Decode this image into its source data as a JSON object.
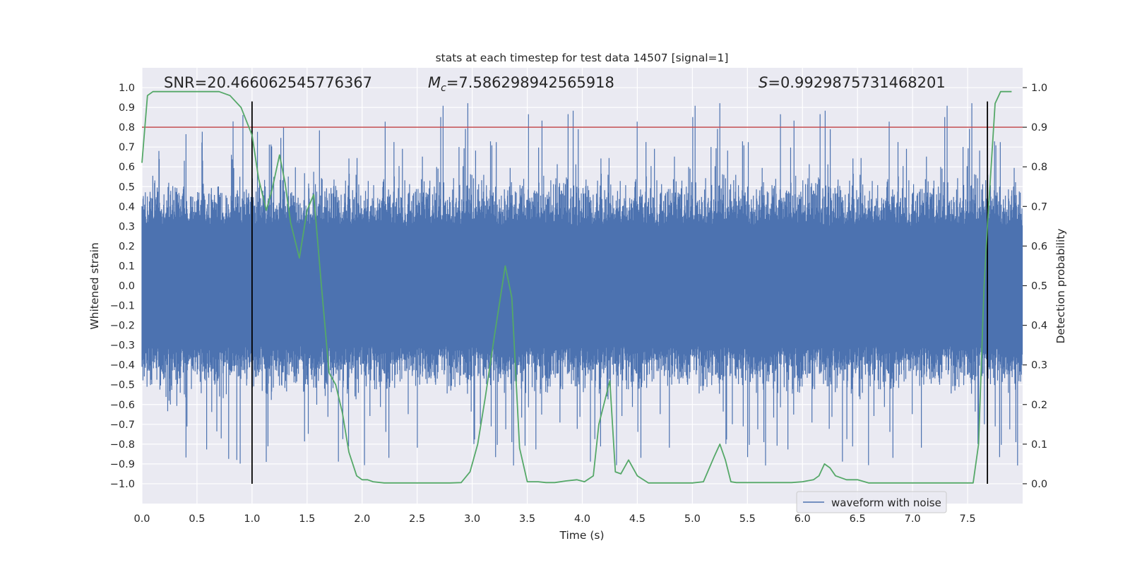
{
  "chart_data": {
    "type": "line",
    "title": "stats at each timestep for test data 14507 [signal=1]",
    "xlabel": "Time (s)",
    "ylabel": "Whitened strain",
    "ylabel_right": "Detection probability",
    "xlim": [
      0.0,
      8.0
    ],
    "ylim": [
      -1.1,
      1.1
    ],
    "ylim_right": [
      -0.05,
      1.05
    ],
    "x_ticks": [
      0.0,
      0.5,
      1.0,
      1.5,
      2.0,
      2.5,
      3.0,
      3.5,
      4.0,
      4.5,
      5.0,
      5.5,
      6.0,
      6.5,
      7.0,
      7.5
    ],
    "x_tick_labels": [
      "0.0",
      "0.5",
      "1.0",
      "1.5",
      "2.0",
      "2.5",
      "3.0",
      "3.5",
      "4.0",
      "4.5",
      "5.0",
      "5.5",
      "6.0",
      "6.5",
      "7.0",
      "7.5"
    ],
    "y_ticks": [
      1.0,
      0.9,
      0.8,
      0.7,
      0.6,
      0.5,
      0.4,
      0.3,
      0.2,
      0.1,
      0.0,
      -0.1,
      -0.2,
      -0.3,
      -0.4,
      -0.5,
      -0.6,
      -0.7,
      -0.8,
      -0.9,
      -1.0
    ],
    "y_tick_labels": [
      "1.0",
      "0.9",
      "0.8",
      "0.7",
      "0.6",
      "0.5",
      "0.4",
      "0.3",
      "0.2",
      "0.1",
      "0.0",
      "−0.1",
      "−0.2",
      "−0.3",
      "−0.4",
      "−0.5",
      "−0.6",
      "−0.7",
      "−0.8",
      "−0.9",
      "−1.0"
    ],
    "y_right_ticks": [
      1.0,
      0.9,
      0.8,
      0.7,
      0.6,
      0.5,
      0.4,
      0.3,
      0.2,
      0.1,
      0.0
    ],
    "y_right_tick_labels": [
      "1.0",
      "0.9",
      "0.8",
      "0.7",
      "0.6",
      "0.5",
      "0.4",
      "0.3",
      "0.2",
      "0.1",
      "0.0"
    ],
    "grid": true,
    "legend": {
      "position": "bottom-right",
      "entries": [
        "waveform with noise"
      ]
    },
    "annotations": {
      "snr": "SNR=20.466062545776367",
      "mc_symbol": "M",
      "mc_subscript": "c",
      "mc_value": "=7.586298942565918",
      "s_symbol": "S",
      "s_value": "=0.9929875731468201"
    },
    "series": [
      {
        "name": "waveform with noise",
        "axis": "left",
        "color": "#4c72b0",
        "kind": "noise_band",
        "duration_s": 8.0,
        "typical_range": [
          -0.42,
          0.45
        ],
        "peak_range": [
          -0.91,
          0.93
        ]
      },
      {
        "axis": "right",
        "color": "#55a868",
        "x": [
          0.0,
          0.05,
          0.1,
          0.2,
          0.3,
          0.5,
          0.7,
          0.8,
          0.9,
          1.0,
          1.06,
          1.13,
          1.18,
          1.25,
          1.3,
          1.35,
          1.43,
          1.5,
          1.56,
          1.63,
          1.7,
          1.76,
          1.82,
          1.88,
          1.95,
          2.0,
          2.05,
          2.1,
          2.2,
          2.4,
          2.6,
          2.8,
          2.9,
          2.98,
          3.05,
          3.12,
          3.2,
          3.3,
          3.36,
          3.43,
          3.5,
          3.6,
          3.67,
          3.75,
          3.85,
          3.95,
          4.02,
          4.1,
          4.15,
          4.25,
          4.3,
          4.35,
          4.42,
          4.5,
          4.6,
          5.0,
          5.1,
          5.2,
          5.25,
          5.3,
          5.35,
          5.4,
          5.5,
          5.7,
          5.8,
          5.9,
          6.0,
          6.1,
          6.15,
          6.2,
          6.25,
          6.3,
          6.4,
          6.5,
          6.6,
          7.0,
          7.4,
          7.55,
          7.6,
          7.65,
          7.68,
          7.75,
          7.8,
          7.85,
          7.9
        ],
        "values": [
          0.81,
          0.98,
          0.99,
          0.99,
          0.99,
          0.99,
          0.99,
          0.98,
          0.95,
          0.88,
          0.77,
          0.69,
          0.74,
          0.83,
          0.76,
          0.66,
          0.57,
          0.69,
          0.73,
          0.5,
          0.28,
          0.25,
          0.18,
          0.08,
          0.02,
          0.01,
          0.01,
          0.005,
          0.002,
          0.002,
          0.002,
          0.002,
          0.003,
          0.03,
          0.1,
          0.22,
          0.37,
          0.55,
          0.47,
          0.09,
          0.005,
          0.005,
          0.003,
          0.003,
          0.007,
          0.01,
          0.005,
          0.02,
          0.15,
          0.26,
          0.03,
          0.025,
          0.06,
          0.02,
          0.002,
          0.002,
          0.005,
          0.07,
          0.1,
          0.06,
          0.005,
          0.003,
          0.003,
          0.003,
          0.003,
          0.003,
          0.005,
          0.01,
          0.02,
          0.05,
          0.04,
          0.02,
          0.01,
          0.01,
          0.002,
          0.002,
          0.002,
          0.002,
          0.1,
          0.5,
          0.65,
          0.96,
          0.99,
          0.99,
          0.99
        ]
      }
    ],
    "horizontal_lines": [
      {
        "axis": "right",
        "value": 0.9,
        "color": "#c44e52"
      }
    ],
    "vertical_lines": [
      {
        "x": 1.0,
        "ymin": -1.0,
        "ymax": 0.93,
        "color": "#000000"
      },
      {
        "x": 7.68,
        "ymin": -1.0,
        "ymax": 0.93,
        "color": "#000000"
      }
    ]
  }
}
